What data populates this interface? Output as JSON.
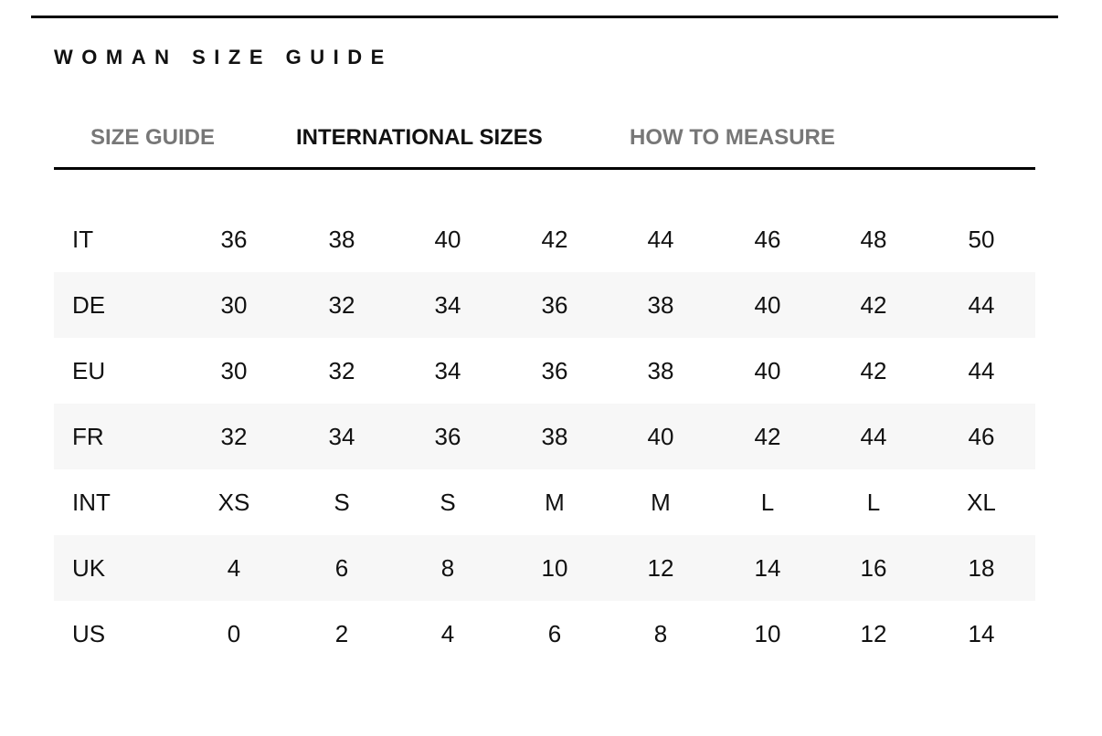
{
  "title": "WOMAN SIZE GUIDE",
  "tabs": [
    {
      "label": "SIZE GUIDE",
      "active": false
    },
    {
      "label": "INTERNATIONAL SIZES",
      "active": true
    },
    {
      "label": "HOW TO MEASURE",
      "active": false
    }
  ],
  "rows": [
    {
      "label": "IT",
      "values": [
        "36",
        "38",
        "40",
        "42",
        "44",
        "46",
        "48",
        "50"
      ]
    },
    {
      "label": "DE",
      "values": [
        "30",
        "32",
        "34",
        "36",
        "38",
        "40",
        "42",
        "44"
      ]
    },
    {
      "label": "EU",
      "values": [
        "30",
        "32",
        "34",
        "36",
        "38",
        "40",
        "42",
        "44"
      ]
    },
    {
      "label": "FR",
      "values": [
        "32",
        "34",
        "36",
        "38",
        "40",
        "42",
        "44",
        "46"
      ]
    },
    {
      "label": "INT",
      "values": [
        "XS",
        "S",
        "S",
        "M",
        "M",
        "L",
        "L",
        "XL"
      ]
    },
    {
      "label": "UK",
      "values": [
        "4",
        "6",
        "8",
        "10",
        "12",
        "14",
        "16",
        "18"
      ]
    },
    {
      "label": "US",
      "values": [
        "0",
        "2",
        "4",
        "6",
        "8",
        "10",
        "12",
        "14"
      ]
    }
  ],
  "colors": {
    "active_tab": "#111111",
    "inactive_tab": "#777777",
    "alt_row": "#f7f7f7"
  }
}
